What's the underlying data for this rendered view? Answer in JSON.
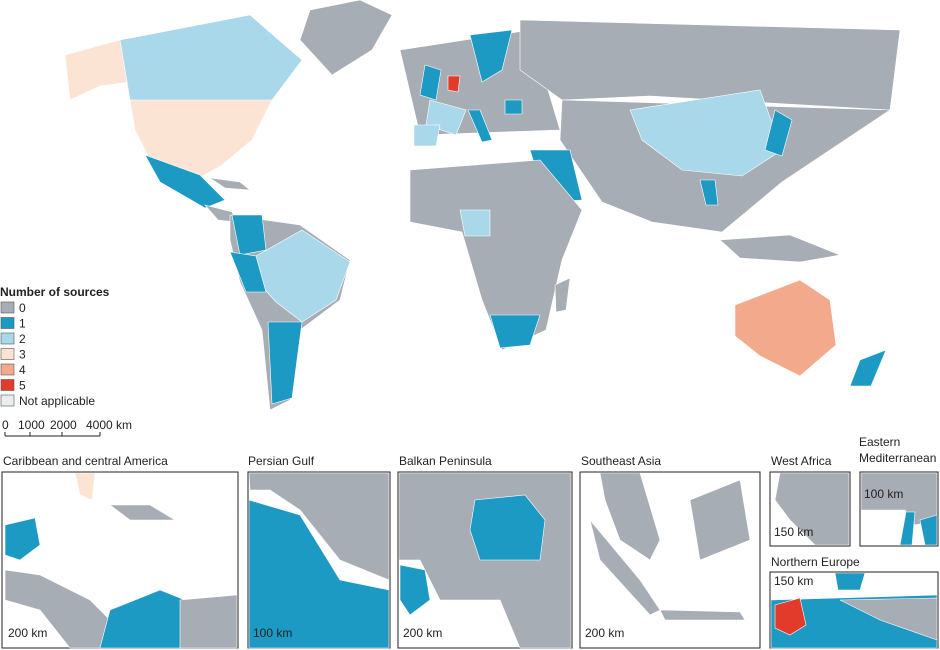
{
  "legend": {
    "title": "Number of sources",
    "items": [
      {
        "label": "0",
        "color": "#a7adb5"
      },
      {
        "label": "1",
        "color": "#1d9ac3"
      },
      {
        "label": "2",
        "color": "#a9d8ea"
      },
      {
        "label": "3",
        "color": "#fbe4d3"
      },
      {
        "label": "4",
        "color": "#f3a98b"
      },
      {
        "label": "5",
        "color": "#e33b2b"
      },
      {
        "label": "Not applicable",
        "color": "#eceded"
      }
    ]
  },
  "scale_bar": {
    "labels": [
      "0",
      "1000",
      "2000",
      "4000 km"
    ]
  },
  "insets": [
    {
      "title": "Caribbean and central America",
      "scale": "200 km"
    },
    {
      "title": "Persian Gulf",
      "scale": "100 km"
    },
    {
      "title": "Balkan Peninsula",
      "scale": "200 km"
    },
    {
      "title": "Southeast Asia",
      "scale": "200 km"
    },
    {
      "title": "West Africa",
      "scale": "150 km"
    },
    {
      "title": "Eastern Mediterranean",
      "scale": "100 km"
    },
    {
      "title": "Northern Europe",
      "scale": "150 km"
    }
  ]
}
